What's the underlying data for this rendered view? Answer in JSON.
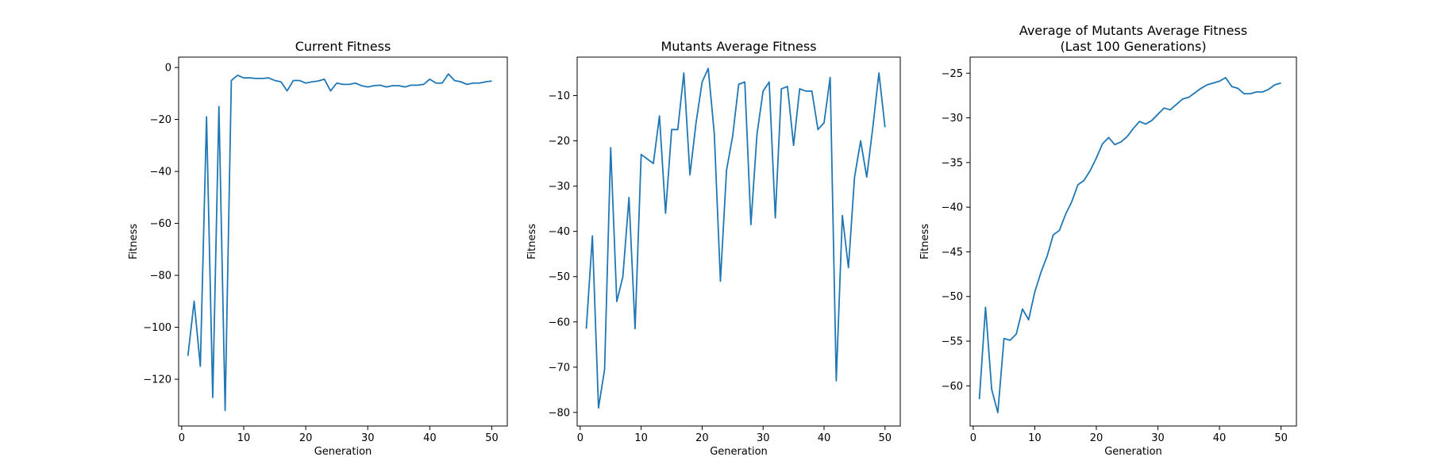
{
  "chart_data": [
    {
      "type": "line",
      "title": "Current Fitness",
      "title_lines": [
        "Current Fitness"
      ],
      "xlabel": "Generation",
      "ylabel": "Fitness",
      "xlim": [
        -0.5,
        52.5
      ],
      "ylim": [
        -138,
        4
      ],
      "xticks": [
        0,
        10,
        20,
        30,
        40,
        50
      ],
      "yticks": [
        0,
        -20,
        -40,
        -60,
        -80,
        -100,
        -120
      ],
      "grid": false,
      "color": "#1f77b4",
      "x": [
        1,
        2,
        3,
        4,
        5,
        6,
        7,
        8,
        9,
        10,
        11,
        12,
        13,
        14,
        15,
        16,
        17,
        18,
        19,
        20,
        21,
        22,
        23,
        24,
        25,
        26,
        27,
        28,
        29,
        30,
        31,
        32,
        33,
        34,
        35,
        36,
        37,
        38,
        39,
        40,
        41,
        42,
        43,
        44,
        45,
        46,
        47,
        48,
        49,
        50
      ],
      "values": [
        -111,
        -90,
        -115,
        -19,
        -127,
        -15,
        -132,
        -5,
        -3,
        -4,
        -4,
        -4.2,
        -4.2,
        -4,
        -5,
        -5.5,
        -9,
        -5,
        -5,
        -6,
        -5.5,
        -5.2,
        -4.5,
        -9,
        -6,
        -6.5,
        -6.5,
        -6,
        -7,
        -7.5,
        -7,
        -6.8,
        -7.5,
        -7,
        -7,
        -7.5,
        -6.8,
        -6.8,
        -6.5,
        -4.5,
        -6,
        -6,
        -2.5,
        -5,
        -5.5,
        -6.5,
        -6,
        -6,
        -5.5,
        -5.2
      ]
    },
    {
      "type": "line",
      "title": "Mutants Average Fitness",
      "title_lines": [
        "Mutants Average Fitness"
      ],
      "xlabel": "Generation",
      "ylabel": "Fitness",
      "xlim": [
        -0.5,
        52.5
      ],
      "ylim": [
        -83,
        -1.5
      ],
      "xticks": [
        0,
        10,
        20,
        30,
        40,
        50
      ],
      "yticks": [
        -10,
        -20,
        -30,
        -40,
        -50,
        -60,
        -70,
        -80
      ],
      "grid": false,
      "color": "#1f77b4",
      "x": [
        1,
        2,
        3,
        4,
        5,
        6,
        7,
        8,
        9,
        10,
        11,
        12,
        13,
        14,
        15,
        16,
        17,
        18,
        19,
        20,
        21,
        22,
        23,
        24,
        25,
        26,
        27,
        28,
        29,
        30,
        31,
        32,
        33,
        34,
        35,
        36,
        37,
        38,
        39,
        40,
        41,
        42,
        43,
        44,
        45,
        46,
        47,
        48,
        49,
        50
      ],
      "values": [
        -61.5,
        -41,
        -79,
        -70.5,
        -21.5,
        -55.5,
        -50,
        -32.5,
        -61.5,
        -23,
        -24,
        -25,
        -14.5,
        -36,
        -17.5,
        -17.5,
        -5,
        -27.5,
        -16,
        -7,
        -4,
        -18.5,
        -51,
        -26.5,
        -19,
        -7.5,
        -7,
        -38.5,
        -18.5,
        -9,
        -7,
        -37,
        -8.5,
        -8,
        -21,
        -8.5,
        -9,
        -9,
        -17.5,
        -16,
        -6,
        -73,
        -36.5,
        -48,
        -28,
        -20,
        -28,
        -17,
        -5,
        -17
      ]
    },
    {
      "type": "line",
      "title": "Average of Mutants Average Fitness\n(Last 100 Generations)",
      "title_lines": [
        "Average of Mutants Average Fitness",
        "(Last 100 Generations)"
      ],
      "xlabel": "Generation",
      "ylabel": "Fitness",
      "xlim": [
        -0.5,
        52.5
      ],
      "ylim": [
        -64.5,
        -23.2
      ],
      "xticks": [
        0,
        10,
        20,
        30,
        40,
        50
      ],
      "yticks": [
        -25,
        -30,
        -35,
        -40,
        -45,
        -50,
        -55,
        -60
      ],
      "grid": false,
      "color": "#1f77b4",
      "x": [
        1,
        2,
        3,
        4,
        5,
        6,
        7,
        8,
        9,
        10,
        11,
        12,
        13,
        14,
        15,
        16,
        17,
        18,
        19,
        20,
        21,
        22,
        23,
        24,
        25,
        26,
        27,
        28,
        29,
        30,
        31,
        32,
        33,
        34,
        35,
        36,
        37,
        38,
        39,
        40,
        41,
        42,
        43,
        44,
        45,
        46,
        47,
        48,
        49,
        50
      ],
      "values": [
        -61.5,
        -51.2,
        -60.4,
        -63,
        -54.7,
        -54.9,
        -54.2,
        -51.4,
        -52.6,
        -49.5,
        -47.3,
        -45.5,
        -43.1,
        -42.6,
        -40.8,
        -39.4,
        -37.5,
        -37,
        -35.9,
        -34.5,
        -32.9,
        -32.2,
        -33,
        -32.7,
        -32.1,
        -31.2,
        -30.4,
        -30.7,
        -30.3,
        -29.6,
        -28.9,
        -29.1,
        -28.5,
        -27.9,
        -27.7,
        -27.2,
        -26.7,
        -26.3,
        -26.1,
        -25.9,
        -25.5,
        -26.5,
        -26.7,
        -27.3,
        -27.3,
        -27.1,
        -27.1,
        -26.8,
        -26.3,
        -26.1
      ]
    }
  ]
}
